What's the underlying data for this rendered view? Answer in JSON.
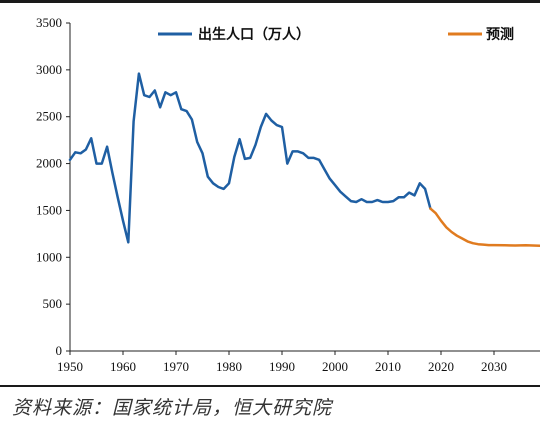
{
  "chart_data": {
    "type": "line",
    "title": "",
    "xlabel": "",
    "ylabel": "",
    "xlim": [
      1950,
      2040
    ],
    "ylim": [
      0,
      3500
    ],
    "x_ticks": [
      "1950",
      "1960",
      "1970",
      "1980",
      "1990",
      "2000",
      "2010",
      "2020",
      "2030",
      "20"
    ],
    "y_ticks": [
      "0",
      "500",
      "1000",
      "1500",
      "2000",
      "2500",
      "3000",
      "3500"
    ],
    "grid": false,
    "legend": "top",
    "series": [
      {
        "name": "出生人口（万人）",
        "color": "#1f5fa3",
        "points": [
          [
            1950,
            2040
          ],
          [
            1951,
            2120
          ],
          [
            1952,
            2110
          ],
          [
            1953,
            2150
          ],
          [
            1954,
            2270
          ],
          [
            1955,
            2000
          ],
          [
            1956,
            2000
          ],
          [
            1957,
            2180
          ],
          [
            1958,
            1900
          ],
          [
            1959,
            1640
          ],
          [
            1960,
            1390
          ],
          [
            1961,
            1160
          ],
          [
            1962,
            2450
          ],
          [
            1963,
            2960
          ],
          [
            1964,
            2730
          ],
          [
            1965,
            2710
          ],
          [
            1966,
            2780
          ],
          [
            1967,
            2600
          ],
          [
            1968,
            2760
          ],
          [
            1969,
            2730
          ],
          [
            1970,
            2760
          ],
          [
            1971,
            2580
          ],
          [
            1972,
            2560
          ],
          [
            1973,
            2470
          ],
          [
            1974,
            2230
          ],
          [
            1975,
            2110
          ],
          [
            1976,
            1860
          ],
          [
            1977,
            1790
          ],
          [
            1978,
            1750
          ],
          [
            1979,
            1730
          ],
          [
            1980,
            1790
          ],
          [
            1981,
            2070
          ],
          [
            1982,
            2260
          ],
          [
            1983,
            2050
          ],
          [
            1984,
            2060
          ],
          [
            1985,
            2200
          ],
          [
            1986,
            2390
          ],
          [
            1987,
            2530
          ],
          [
            1988,
            2460
          ],
          [
            1989,
            2410
          ],
          [
            1990,
            2390
          ],
          [
            1991,
            2000
          ],
          [
            1992,
            2130
          ],
          [
            1993,
            2130
          ],
          [
            1994,
            2110
          ],
          [
            1995,
            2060
          ],
          [
            1996,
            2060
          ],
          [
            1997,
            2040
          ],
          [
            1998,
            1940
          ],
          [
            1999,
            1840
          ],
          [
            2000,
            1770
          ],
          [
            2001,
            1700
          ],
          [
            2002,
            1650
          ],
          [
            2003,
            1600
          ],
          [
            2004,
            1590
          ],
          [
            2005,
            1620
          ],
          [
            2006,
            1590
          ],
          [
            2007,
            1590
          ],
          [
            2008,
            1610
          ],
          [
            2009,
            1590
          ],
          [
            2010,
            1590
          ],
          [
            2011,
            1600
          ],
          [
            2012,
            1640
          ],
          [
            2013,
            1640
          ],
          [
            2014,
            1690
          ],
          [
            2015,
            1660
          ],
          [
            2016,
            1790
          ],
          [
            2017,
            1730
          ],
          [
            2018,
            1520
          ]
        ]
      },
      {
        "name": "预测",
        "color": "#e07b1f",
        "points": [
          [
            2018,
            1520
          ],
          [
            2019,
            1470
          ],
          [
            2020,
            1390
          ],
          [
            2021,
            1320
          ],
          [
            2022,
            1270
          ],
          [
            2023,
            1230
          ],
          [
            2024,
            1200
          ],
          [
            2025,
            1170
          ],
          [
            2026,
            1150
          ],
          [
            2027,
            1140
          ],
          [
            2028,
            1135
          ],
          [
            2029,
            1130
          ],
          [
            2030,
            1130
          ],
          [
            2032,
            1128
          ],
          [
            2034,
            1126
          ],
          [
            2036,
            1128
          ],
          [
            2038,
            1125
          ],
          [
            2040,
            1122
          ]
        ]
      }
    ]
  },
  "source_text": "资料来源：国家统计局，恒大研究院"
}
